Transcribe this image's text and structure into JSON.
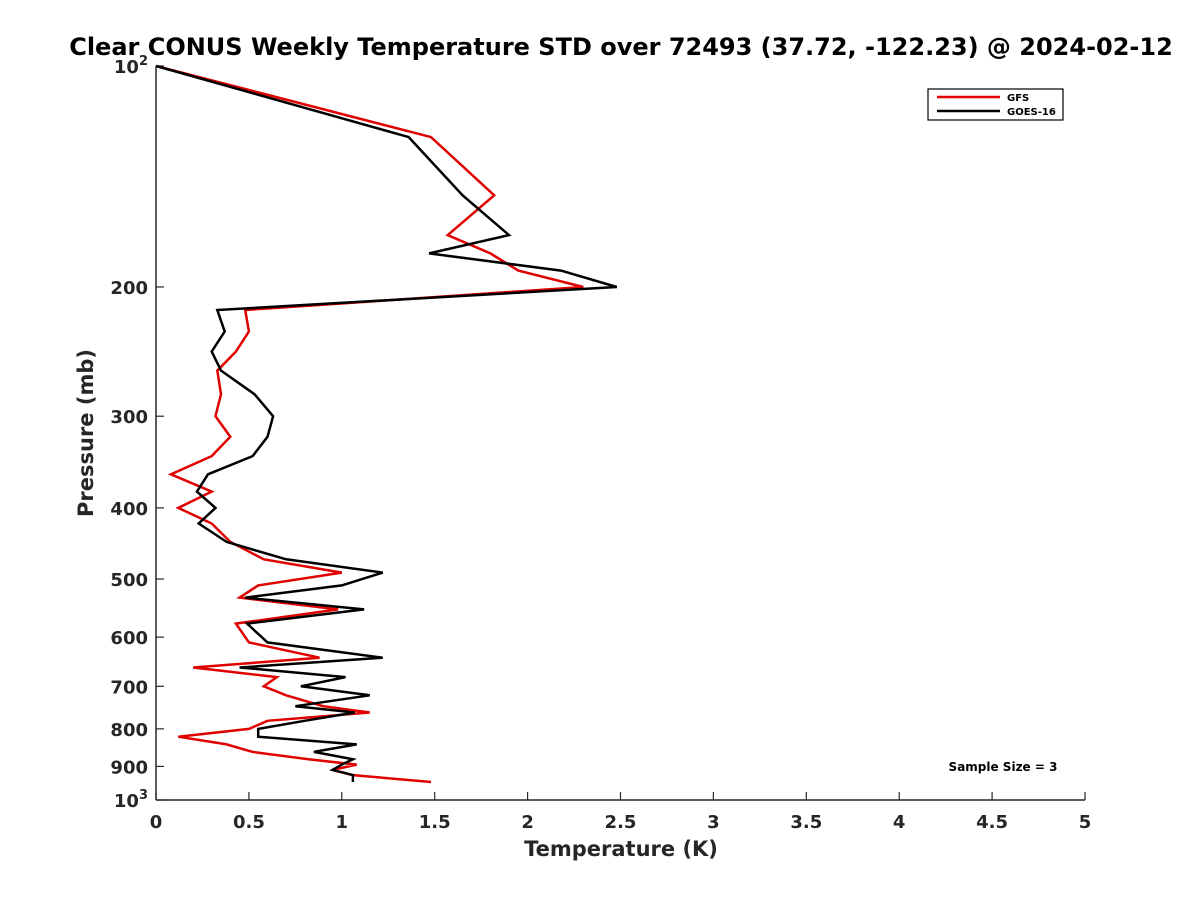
{
  "chart_data": {
    "type": "line",
    "title": "Clear CONUS Weekly Temperature STD over 72493 (37.72, -122.23) @ 2024-02-12",
    "xlabel": "Temperature (K)",
    "ylabel": "Pressure (mb)",
    "xlim": [
      0,
      5
    ],
    "ylim": [
      100,
      1000
    ],
    "y_scale": "log",
    "y_reversed": true,
    "xticks": [
      0,
      0.5,
      1,
      1.5,
      2,
      2.5,
      3,
      3.5,
      4,
      4.5,
      5
    ],
    "xtick_labels": [
      "0",
      "0.5",
      "1",
      "1.5",
      "2",
      "2.5",
      "3",
      "3.5",
      "4",
      "4.5",
      "5"
    ],
    "yticks": [
      100,
      200,
      300,
      400,
      500,
      600,
      700,
      800,
      900,
      1000
    ],
    "ytick_labels": [
      "10^2",
      "200",
      "300",
      "400",
      "500",
      "600",
      "700",
      "800",
      "900",
      "10^3"
    ],
    "legend_position": "top-right",
    "annotation": "Sample Size = 3",
    "series": [
      {
        "name": "GFS",
        "color": "#e00000",
        "points": [
          [
            0,
            100
          ],
          [
            1.48,
            125
          ],
          [
            1.82,
            150
          ],
          [
            1.57,
            170
          ],
          [
            1.8,
            180
          ],
          [
            1.95,
            190
          ],
          [
            2.3,
            200
          ],
          [
            0.48,
            215
          ],
          [
            0.5,
            230
          ],
          [
            0.43,
            245
          ],
          [
            0.33,
            260
          ],
          [
            0.35,
            280
          ],
          [
            0.32,
            300
          ],
          [
            0.4,
            320
          ],
          [
            0.3,
            340
          ],
          [
            0.08,
            360
          ],
          [
            0.3,
            380
          ],
          [
            0.12,
            400
          ],
          [
            0.3,
            420
          ],
          [
            0.4,
            445
          ],
          [
            0.58,
            470
          ],
          [
            1.0,
            490
          ],
          [
            0.55,
            510
          ],
          [
            0.45,
            530
          ],
          [
            0.98,
            550
          ],
          [
            0.43,
            575
          ],
          [
            0.5,
            610
          ],
          [
            0.88,
            640
          ],
          [
            0.2,
            660
          ],
          [
            0.65,
            680
          ],
          [
            0.58,
            700
          ],
          [
            0.7,
            720
          ],
          [
            0.9,
            745
          ],
          [
            1.15,
            760
          ],
          [
            0.6,
            780
          ],
          [
            0.5,
            800
          ],
          [
            0.12,
            820
          ],
          [
            0.38,
            840
          ],
          [
            0.52,
            860
          ],
          [
            0.82,
            880
          ],
          [
            1.08,
            895
          ],
          [
            0.95,
            910
          ],
          [
            1.06,
            925
          ],
          [
            1.48,
            945
          ]
        ]
      },
      {
        "name": "GOES-16",
        "color": "#000000",
        "points": [
          [
            0,
            100
          ],
          [
            1.36,
            125
          ],
          [
            1.65,
            150
          ],
          [
            1.9,
            170
          ],
          [
            1.47,
            180
          ],
          [
            2.18,
            190
          ],
          [
            2.48,
            200
          ],
          [
            0.33,
            215
          ],
          [
            0.37,
            230
          ],
          [
            0.3,
            245
          ],
          [
            0.35,
            260
          ],
          [
            0.53,
            280
          ],
          [
            0.63,
            300
          ],
          [
            0.6,
            320
          ],
          [
            0.52,
            340
          ],
          [
            0.28,
            360
          ],
          [
            0.22,
            380
          ],
          [
            0.32,
            400
          ],
          [
            0.23,
            420
          ],
          [
            0.38,
            445
          ],
          [
            0.7,
            470
          ],
          [
            1.22,
            490
          ],
          [
            1.0,
            510
          ],
          [
            0.48,
            530
          ],
          [
            1.12,
            550
          ],
          [
            0.49,
            575
          ],
          [
            0.6,
            610
          ],
          [
            1.22,
            640
          ],
          [
            0.45,
            660
          ],
          [
            1.02,
            680
          ],
          [
            0.78,
            700
          ],
          [
            1.15,
            720
          ],
          [
            0.75,
            745
          ],
          [
            1.07,
            760
          ],
          [
            0.8,
            780
          ],
          [
            0.55,
            800
          ],
          [
            0.55,
            820
          ],
          [
            1.08,
            840
          ],
          [
            0.85,
            860
          ],
          [
            1.06,
            880
          ],
          [
            1.0,
            895
          ],
          [
            0.95,
            910
          ],
          [
            1.06,
            925
          ],
          [
            1.06,
            945
          ]
        ]
      }
    ]
  }
}
